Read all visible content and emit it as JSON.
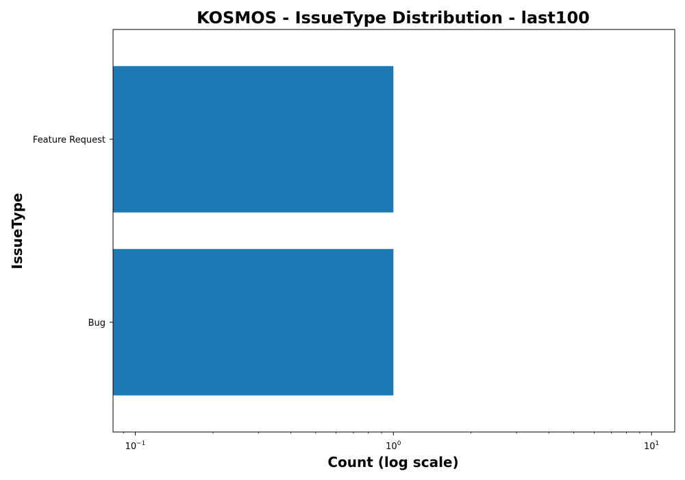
{
  "chart_data": {
    "type": "bar",
    "orientation": "horizontal",
    "title": "KOSMOS - IssueType Distribution - last100",
    "xlabel": "Count (log scale)",
    "ylabel": "IssueType",
    "x_scale": "log",
    "xlim": [
      0.082,
      12.3
    ],
    "x_ticks": [
      {
        "value": 0.1,
        "base": "10",
        "exp": "−1"
      },
      {
        "value": 1,
        "base": "10",
        "exp": "0"
      },
      {
        "value": 10,
        "base": "10",
        "exp": "1"
      }
    ],
    "categories": [
      "Feature Request",
      "Bug"
    ],
    "values": [
      1,
      1
    ],
    "bar_color": "#1f77b4",
    "grid": false,
    "legend": false
  }
}
